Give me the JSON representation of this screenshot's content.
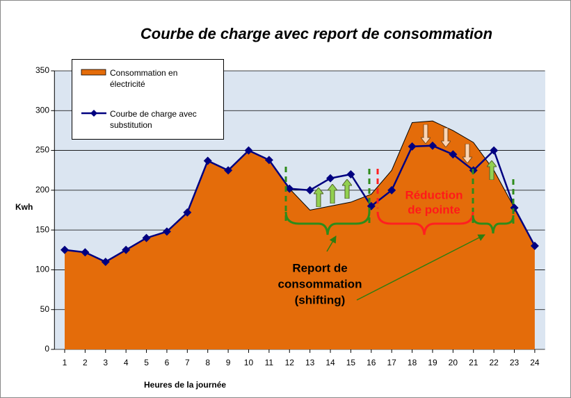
{
  "chart_data": {
    "type": "line",
    "title": "Courbe de charge avec report de consommation",
    "ylabel": "Kwh",
    "xlabel": "Heures de la journée",
    "categories": [
      "1",
      "2",
      "3",
      "4",
      "5",
      "6",
      "7",
      "8",
      "9",
      "10",
      "11",
      "12",
      "13",
      "14",
      "15",
      "16",
      "17",
      "18",
      "19",
      "20",
      "21",
      "22",
      "23",
      "24"
    ],
    "series": [
      {
        "name": "Consommation en électricité",
        "style": "area",
        "color": "#e46c0a",
        "values": [
          125,
          122,
          110,
          125,
          140,
          148,
          172,
          237,
          225,
          250,
          238,
          202,
          175,
          180,
          185,
          195,
          225,
          285,
          287,
          275,
          260,
          225,
          178,
          130
        ]
      },
      {
        "name": "Courbe de charge avec substitution",
        "style": "line",
        "color": "#000080",
        "values": [
          125,
          122,
          110,
          125,
          140,
          148,
          172,
          237,
          225,
          250,
          238,
          202,
          200,
          215,
          220,
          180,
          200,
          255,
          256,
          245,
          225,
          250,
          178,
          130
        ]
      }
    ],
    "ylim": [
      0,
      350
    ],
    "yticks": [
      0,
      50,
      100,
      150,
      200,
      250,
      300,
      350
    ],
    "grid": true,
    "legend": "top-left",
    "annotations": {
      "shifting": [
        "Report de",
        "consommation",
        "(shifting)"
      ],
      "peak": [
        "Réduction",
        "de pointe"
      ]
    }
  }
}
